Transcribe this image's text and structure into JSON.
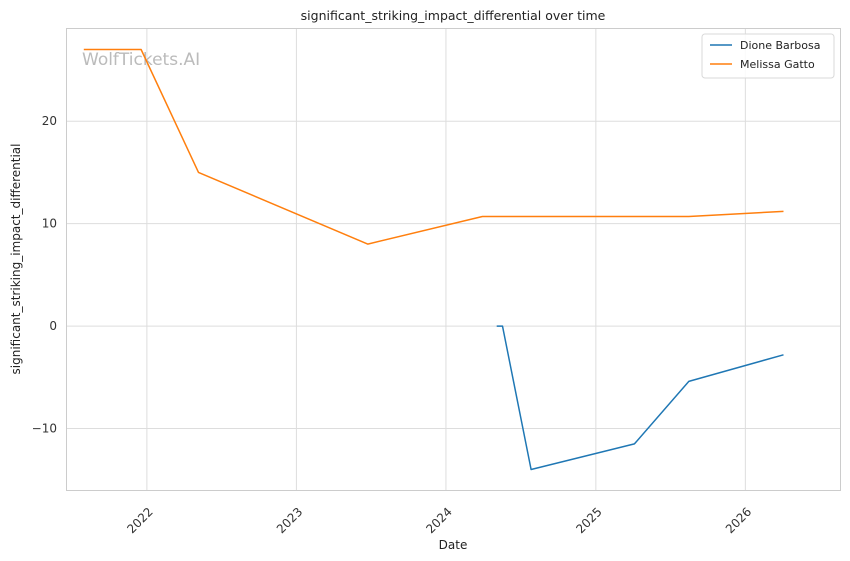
{
  "chart_data": {
    "type": "line",
    "title": "significant_striking_impact_differential over time",
    "xlabel": "Date",
    "ylabel": "significant_striking_impact_differential",
    "watermark": "WolfTickets.AI",
    "xlim": [
      "2021-06-20",
      "2026-08-20"
    ],
    "ylim": [
      -16,
      29
    ],
    "x_ticks": [
      "2022",
      "2023",
      "2024",
      "2025",
      "2026"
    ],
    "y_ticks": [
      -10,
      0,
      10,
      20
    ],
    "y_tick_labels": [
      "−10",
      "0",
      "10",
      "20"
    ],
    "grid": true,
    "legend_position": "top-right",
    "series": [
      {
        "name": "Dione Barbosa",
        "color": "#1f77b4",
        "points": [
          {
            "x": "2024-05-04",
            "y": 0
          },
          {
            "x": "2024-05-18",
            "y": 0
          },
          {
            "x": "2024-07-27",
            "y": -14
          },
          {
            "x": "2025-04-05",
            "y": -11.5
          },
          {
            "x": "2025-08-16",
            "y": -5.4
          },
          {
            "x": "2026-04-04",
            "y": -2.8
          }
        ]
      },
      {
        "name": "Melissa Gatto",
        "color": "#ff7f0e",
        "points": [
          {
            "x": "2021-07-31",
            "y": 27
          },
          {
            "x": "2021-12-18",
            "y": 27
          },
          {
            "x": "2022-05-07",
            "y": 15
          },
          {
            "x": "2023-06-24",
            "y": 8
          },
          {
            "x": "2024-03-30",
            "y": 10.7
          },
          {
            "x": "2025-08-16",
            "y": 10.7
          },
          {
            "x": "2026-04-04",
            "y": 11.2
          }
        ]
      }
    ]
  }
}
